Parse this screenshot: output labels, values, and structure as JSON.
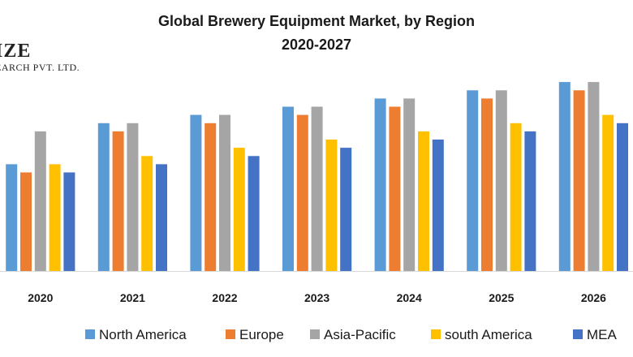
{
  "logo": {
    "line1": "IZE",
    "line2": "EARCH PVT. LTD."
  },
  "chart_data": {
    "type": "bar",
    "title": "Global Brewery Equipment Market, by Region",
    "subtitle": "2020-2027",
    "xlabel": "",
    "ylabel": "",
    "categories": [
      "2020",
      "2021",
      "2022",
      "2023",
      "2024",
      "2025",
      "2026"
    ],
    "ylim": [
      0,
      24
    ],
    "grid": false,
    "legend_position": "bottom",
    "series": [
      {
        "name": "North America",
        "color": "#5B9BD5",
        "values": [
          13,
          18,
          19,
          20,
          21,
          22,
          23
        ]
      },
      {
        "name": "Europe",
        "color": "#ED7D31",
        "values": [
          12,
          17,
          18,
          19,
          20,
          21,
          22
        ]
      },
      {
        "name": "Asia-Pacific",
        "color": "#A5A5A5",
        "values": [
          17,
          18,
          19,
          20,
          21,
          22,
          23
        ]
      },
      {
        "name": "south America",
        "color": "#FFC000",
        "values": [
          13,
          14,
          15,
          16,
          17,
          18,
          19
        ]
      },
      {
        "name": "MEA",
        "color": "#4472C4",
        "values": [
          12,
          13,
          14,
          15,
          16,
          17,
          18
        ]
      }
    ]
  }
}
